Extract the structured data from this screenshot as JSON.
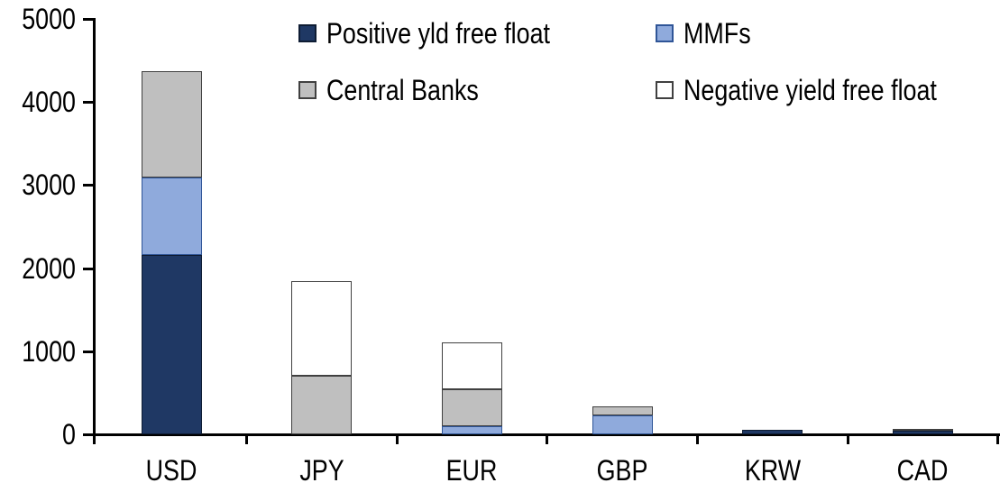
{
  "chart_data": {
    "type": "bar",
    "stacked": true,
    "title": "",
    "xlabel": "",
    "ylabel": "",
    "categories": [
      "USD",
      "JPY",
      "EUR",
      "GBP",
      "KRW",
      "CAD"
    ],
    "series": [
      {
        "name": "Positive yld free float",
        "color": "#1F3864",
        "border": "#0E1C33",
        "values": [
          2160,
          0,
          0,
          0,
          50,
          40
        ]
      },
      {
        "name": "MMFs",
        "color": "#8FAADC",
        "border": "#2F5597",
        "values": [
          930,
          0,
          100,
          225,
          0,
          0
        ]
      },
      {
        "name": "Central Banks",
        "color": "#BFBFBF",
        "border": "#404040",
        "values": [
          1280,
          700,
          440,
          110,
          0,
          25
        ]
      },
      {
        "name": "Negative yield free float",
        "color": "#FFFFFF",
        "border": "#404040",
        "values": [
          0,
          1140,
          570,
          0,
          0,
          0
        ]
      }
    ],
    "totals": [
      4370,
      1840,
      1110,
      335,
      50,
      65
    ],
    "ylim": [
      0,
      5000
    ],
    "yticks": [
      0,
      1000,
      2000,
      3000,
      4000,
      5000
    ],
    "grid": false,
    "legend_position": "top",
    "legend_rows": [
      [
        "Positive yld free float",
        "MMFs"
      ],
      [
        "Central Banks",
        "Negative yield free float"
      ]
    ],
    "axis_color": "#000000",
    "background": "#FFFFFF"
  }
}
